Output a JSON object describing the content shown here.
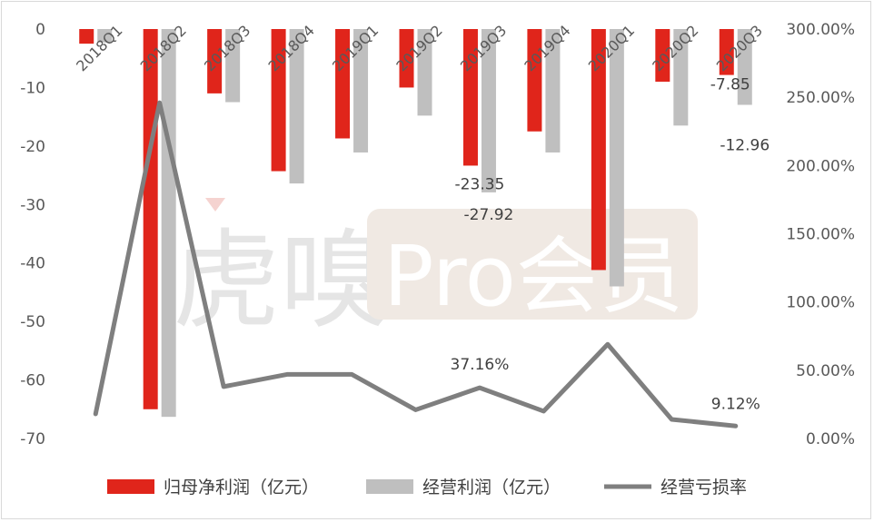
{
  "chart_data": {
    "type": "bar",
    "categories": [
      "2018Q1",
      "2018Q2",
      "2018Q3",
      "2018Q4",
      "2019Q1",
      "2019Q2",
      "2019Q3",
      "2019Q4",
      "2020Q1",
      "2020Q2",
      "2020Q3"
    ],
    "series": [
      {
        "name": "归母净利润（亿元）",
        "type": "bar",
        "axis": "left",
        "color": "#e0251b",
        "values": [
          -2.5,
          -65,
          -11,
          -24.3,
          -18.7,
          -10,
          -23.35,
          -17.5,
          -41.2,
          -9,
          -7.85
        ]
      },
      {
        "name": "经营利润（亿元）",
        "type": "bar",
        "axis": "left",
        "color": "#bfbfbf",
        "values": [
          -2.3,
          -66.3,
          -12.5,
          -26.4,
          -21.1,
          -14.8,
          -27.92,
          -21.1,
          -44,
          -16.5,
          -12.96
        ]
      },
      {
        "name": "经营亏损率",
        "type": "line",
        "axis": "right",
        "color": "#7f7f7f",
        "values": [
          18,
          246,
          38,
          47,
          47,
          21,
          37.16,
          20,
          69,
          14,
          9.12
        ]
      }
    ],
    "y_left": {
      "range": [
        -70,
        0
      ],
      "ticks": [
        "0",
        "-10",
        "-20",
        "-30",
        "-40",
        "-50",
        "-60",
        "-70"
      ]
    },
    "y_right": {
      "range": [
        0,
        300
      ],
      "ticks": [
        "300.00%",
        "250.00%",
        "200.00%",
        "150.00%",
        "100.00%",
        "50.00%",
        "0.00%"
      ]
    },
    "data_labels": [
      {
        "series": 0,
        "index": 6,
        "text": "-23.35"
      },
      {
        "series": 1,
        "index": 6,
        "text": "-27.92"
      },
      {
        "series": 2,
        "index": 6,
        "text": "37.16%"
      },
      {
        "series": 0,
        "index": 10,
        "text": "-7.85"
      },
      {
        "series": 1,
        "index": 10,
        "text": "-12.96"
      },
      {
        "series": 2,
        "index": 10,
        "text": "9.12%"
      }
    ],
    "grid": false,
    "legend_position": "bottom",
    "title": ""
  },
  "watermark": {
    "text": "虎嗅",
    "badge_text": "Pro会员"
  }
}
